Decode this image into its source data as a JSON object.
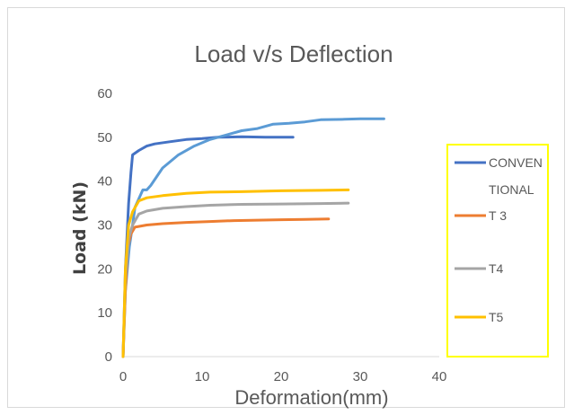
{
  "chart_data": {
    "type": "line",
    "title": "Load v/s Deflection",
    "xlabel": "Deformation(mm)",
    "ylabel": "Load (kN)",
    "xlim": [
      0,
      40
    ],
    "ylim": [
      0,
      60
    ],
    "x_ticks": [
      0,
      10,
      20,
      30,
      40
    ],
    "y_ticks": [
      0,
      10,
      20,
      30,
      40,
      50,
      60
    ],
    "grid": false,
    "legend_position": "right",
    "legend_border_color": "#ffff00",
    "legend": [
      {
        "label_lines": [
          "CONVEN",
          "TIONAL"
        ],
        "color": "#4472c4"
      },
      {
        "label_lines": [
          "T 3"
        ],
        "color": "#ed7d31"
      },
      {
        "label_lines": [
          "T4"
        ],
        "color": "#a5a5a5"
      },
      {
        "label_lines": [
          "T5"
        ],
        "color": "#ffc000"
      }
    ],
    "series": [
      {
        "color": "#4472c4",
        "points": [
          [
            0,
            0
          ],
          [
            0.3,
            20
          ],
          [
            0.7,
            35
          ],
          [
            1,
            42
          ],
          [
            1.2,
            46
          ],
          [
            2,
            47
          ],
          [
            3,
            48
          ],
          [
            4,
            48.5
          ],
          [
            6,
            49
          ],
          [
            8,
            49.5
          ],
          [
            10,
            49.7
          ],
          [
            12,
            50
          ],
          [
            15,
            50.1
          ],
          [
            18,
            50
          ],
          [
            21.5,
            50
          ]
        ]
      },
      {
        "color": "#5b9bd5",
        "points": [
          [
            0,
            0
          ],
          [
            0.3,
            15
          ],
          [
            0.8,
            25
          ],
          [
            1.2,
            30
          ],
          [
            1.5,
            34
          ],
          [
            2.5,
            38
          ],
          [
            3,
            38
          ],
          [
            3.5,
            39
          ],
          [
            5,
            43
          ],
          [
            7,
            46
          ],
          [
            9,
            48
          ],
          [
            11,
            49.5
          ],
          [
            13,
            50.5
          ],
          [
            15,
            51.5
          ],
          [
            17,
            52
          ],
          [
            19,
            53
          ],
          [
            21,
            53.2
          ],
          [
            23,
            53.5
          ],
          [
            25,
            54
          ],
          [
            28,
            54.1
          ],
          [
            30,
            54.2
          ],
          [
            33,
            54.2
          ]
        ]
      },
      {
        "name": "T 3",
        "color": "#ed7d31",
        "points": [
          [
            0,
            0
          ],
          [
            0.3,
            15
          ],
          [
            0.6,
            25
          ],
          [
            1,
            28
          ],
          [
            1.5,
            29.5
          ],
          [
            3,
            30
          ],
          [
            5,
            30.3
          ],
          [
            8,
            30.6
          ],
          [
            11,
            30.8
          ],
          [
            14,
            31
          ],
          [
            17,
            31.1
          ],
          [
            20,
            31.2
          ],
          [
            23,
            31.3
          ],
          [
            26,
            31.4
          ]
        ]
      },
      {
        "name": "T4",
        "color": "#a5a5a5",
        "points": [
          [
            0,
            0
          ],
          [
            0.3,
            18
          ],
          [
            0.7,
            27
          ],
          [
            1.2,
            30
          ],
          [
            2,
            32.5
          ],
          [
            3,
            33.2
          ],
          [
            5,
            33.8
          ],
          [
            8,
            34.2
          ],
          [
            11,
            34.5
          ],
          [
            15,
            34.7
          ],
          [
            20,
            34.8
          ],
          [
            25,
            34.9
          ],
          [
            28.5,
            35
          ]
        ]
      },
      {
        "name": "T5",
        "color": "#ffc000",
        "points": [
          [
            0,
            0
          ],
          [
            0.3,
            20
          ],
          [
            0.7,
            30
          ],
          [
            1.2,
            33
          ],
          [
            2,
            35.5
          ],
          [
            3,
            36.2
          ],
          [
            5,
            36.7
          ],
          [
            8,
            37.2
          ],
          [
            11,
            37.5
          ],
          [
            15,
            37.6
          ],
          [
            20,
            37.8
          ],
          [
            25,
            37.9
          ],
          [
            28.5,
            38
          ]
        ]
      }
    ]
  }
}
